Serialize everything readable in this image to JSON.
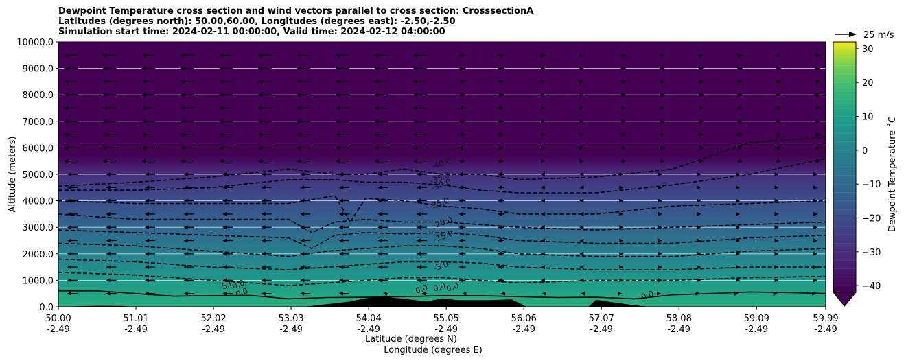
{
  "chart_data": {
    "type": "heatmap",
    "title_lines": [
      "Dewpoint Temperature cross section and wind vectors parallel to cross section: CrosssectionA",
      "Latitudes (degrees north): 50.00,60.00, Longitudes (degrees east): -2.50,-2.50",
      "Simulation start time: 2024-02-11 00:00:00, Valid time: 2024-02-12 04:00:00"
    ],
    "ylabel": "Altitude (meters)",
    "xlabel": "Latitude (degrees N)",
    "xlabel2": "Longitude (degrees E)",
    "ylim": [
      0,
      10000
    ],
    "xlim": [
      50.0,
      59.99
    ],
    "y_ticks": [
      "0.0",
      "1000.0",
      "2000.0",
      "3000.0",
      "4000.0",
      "5000.0",
      "6000.0",
      "7000.0",
      "8000.0",
      "9000.0",
      "10000.0"
    ],
    "x_ticks": [
      {
        "lat": "50.00",
        "lon": "-2.49"
      },
      {
        "lat": "51.01",
        "lon": "-2.49"
      },
      {
        "lat": "52.02",
        "lon": "-2.49"
      },
      {
        "lat": "53.03",
        "lon": "-2.49"
      },
      {
        "lat": "54.04",
        "lon": "-2.49"
      },
      {
        "lat": "55.05",
        "lon": "-2.49"
      },
      {
        "lat": "56.06",
        "lon": "-2.49"
      },
      {
        "lat": "57.07",
        "lon": "-2.49"
      },
      {
        "lat": "58.08",
        "lon": "-2.49"
      },
      {
        "lat": "59.09",
        "lon": "-2.49"
      },
      {
        "lat": "59.99",
        "lon": "-2.49"
      }
    ],
    "grid": "horizontal",
    "colorbar": {
      "label": "Dewpoint Temperature ˚C",
      "ticks": [
        "30",
        "20",
        "10",
        "0",
        "−10",
        "−20",
        "−30",
        "−40"
      ],
      "range": [
        -42,
        32
      ],
      "extend": "min",
      "colormap": "viridis"
    },
    "quiver_key": {
      "label": "25 m/s",
      "speed": 25
    },
    "contour_labels": [
      "-40.0",
      "-35.0",
      "-30.0",
      "-25.0",
      "-20.0",
      "-15.0",
      "-5.0",
      "0.0",
      "0.0",
      "-5.0",
      "0.0",
      "0.0",
      "0.0",
      "0.0"
    ],
    "contours": [
      {
        "level": 0,
        "style": "solid",
        "points": [
          [
            50.0,
            600
          ],
          [
            50.5,
            600
          ],
          [
            51.0,
            500
          ],
          [
            51.5,
            400
          ],
          [
            52.0,
            420
          ],
          [
            52.5,
            430
          ],
          [
            53.0,
            300
          ],
          [
            53.5,
            350
          ],
          [
            54.0,
            360
          ],
          [
            54.5,
            380
          ],
          [
            55.0,
            420
          ],
          [
            55.5,
            420
          ],
          [
            56.0,
            380
          ],
          [
            56.5,
            350
          ],
          [
            57.0,
            360
          ],
          [
            57.5,
            300
          ],
          [
            58.0,
            450
          ],
          [
            58.5,
            500
          ],
          [
            59.0,
            560
          ],
          [
            59.5,
            540
          ],
          [
            59.99,
            500
          ]
        ]
      },
      {
        "level": -5,
        "style": "dashed",
        "points": [
          [
            50.0,
            1300
          ],
          [
            51.0,
            1200
          ],
          [
            52.0,
            1000
          ],
          [
            53.0,
            800
          ],
          [
            53.5,
            900
          ],
          [
            54.0,
            1000
          ],
          [
            54.5,
            1100
          ],
          [
            55.0,
            1100
          ],
          [
            55.5,
            1000
          ],
          [
            56.0,
            900
          ],
          [
            56.5,
            950
          ],
          [
            57.0,
            1000
          ],
          [
            58.0,
            1000
          ],
          [
            59.0,
            1100
          ],
          [
            59.99,
            1150
          ]
        ]
      },
      {
        "level": -10,
        "style": "dashed",
        "points": [
          [
            50.0,
            1800
          ],
          [
            51.0,
            1700
          ],
          [
            52.0,
            1500
          ],
          [
            53.0,
            1400
          ],
          [
            53.5,
            1500
          ],
          [
            54.0,
            1600
          ],
          [
            54.5,
            1700
          ],
          [
            55.0,
            1700
          ],
          [
            55.5,
            1650
          ],
          [
            56.0,
            1500
          ],
          [
            57.0,
            1400
          ],
          [
            58.0,
            1400
          ],
          [
            59.0,
            1500
          ],
          [
            59.99,
            1500
          ]
        ]
      },
      {
        "level": -15,
        "style": "dashed",
        "points": [
          [
            50.0,
            2400
          ],
          [
            51.0,
            2300
          ],
          [
            52.0,
            2100
          ],
          [
            53.0,
            1900
          ],
          [
            53.5,
            2100
          ],
          [
            54.0,
            2200
          ],
          [
            54.5,
            2300
          ],
          [
            55.0,
            2300
          ],
          [
            55.5,
            2200
          ],
          [
            56.0,
            2000
          ],
          [
            57.0,
            1900
          ],
          [
            58.0,
            1900
          ],
          [
            59.0,
            2100
          ],
          [
            59.99,
            2200
          ]
        ]
      },
      {
        "level": -20,
        "style": "dashed",
        "points": [
          [
            50.0,
            2900
          ],
          [
            51.0,
            2800
          ],
          [
            52.0,
            2700
          ],
          [
            53.0,
            2600
          ],
          [
            53.3,
            2200
          ],
          [
            53.6,
            2700
          ],
          [
            54.0,
            2800
          ],
          [
            54.5,
            2750
          ],
          [
            55.0,
            2800
          ],
          [
            55.5,
            2700
          ],
          [
            56.0,
            2500
          ],
          [
            57.0,
            2400
          ],
          [
            58.0,
            2400
          ],
          [
            59.0,
            2600
          ],
          [
            59.99,
            2700
          ]
        ]
      },
      {
        "level": -25,
        "style": "dashed",
        "points": [
          [
            50.0,
            3500
          ],
          [
            51.0,
            3300
          ],
          [
            52.0,
            3300
          ],
          [
            53.0,
            3300
          ],
          [
            53.3,
            2800
          ],
          [
            53.6,
            3200
          ],
          [
            54.0,
            3300
          ],
          [
            54.5,
            3200
          ],
          [
            55.0,
            3200
          ],
          [
            55.5,
            3100
          ],
          [
            56.0,
            3000
          ],
          [
            57.0,
            2900
          ],
          [
            58.0,
            3000
          ],
          [
            59.0,
            3100
          ],
          [
            59.99,
            3200
          ]
        ]
      },
      {
        "level": -30,
        "style": "dashed",
        "points": [
          [
            50.0,
            4000
          ],
          [
            51.0,
            3900
          ],
          [
            52.0,
            3900
          ],
          [
            53.0,
            3900
          ],
          [
            53.6,
            4200
          ],
          [
            53.8,
            3200
          ],
          [
            54.0,
            4100
          ],
          [
            54.5,
            4000
          ],
          [
            55.0,
            3800
          ],
          [
            55.5,
            3700
          ],
          [
            56.0,
            3500
          ],
          [
            57.0,
            3500
          ],
          [
            58.0,
            3800
          ],
          [
            59.0,
            3900
          ],
          [
            59.99,
            4000
          ]
        ]
      },
      {
        "level": -35,
        "style": "dashed",
        "points": [
          [
            50.0,
            4400
          ],
          [
            51.0,
            4400
          ],
          [
            52.0,
            4500
          ],
          [
            53.0,
            4800
          ],
          [
            53.6,
            4800
          ],
          [
            54.0,
            4700
          ],
          [
            54.5,
            4700
          ],
          [
            55.0,
            4600
          ],
          [
            55.5,
            4400
          ],
          [
            56.0,
            4300
          ],
          [
            57.0,
            4300
          ],
          [
            58.0,
            4600
          ],
          [
            59.0,
            5000
          ],
          [
            59.5,
            5300
          ],
          [
            59.99,
            5600
          ]
        ]
      },
      {
        "level": -40,
        "style": "dashed",
        "points": [
          [
            50.0,
            4550
          ],
          [
            51.0,
            4700
          ],
          [
            52.0,
            4900
          ],
          [
            53.0,
            5200
          ],
          [
            53.6,
            5000
          ],
          [
            54.0,
            5000
          ],
          [
            54.5,
            5200
          ],
          [
            55.0,
            5000
          ],
          [
            55.5,
            5000
          ],
          [
            56.0,
            4800
          ],
          [
            57.0,
            4900
          ],
          [
            58.0,
            5200
          ],
          [
            58.5,
            5700
          ],
          [
            59.0,
            6200
          ],
          [
            59.5,
            6300
          ],
          [
            59.99,
            6400
          ]
        ]
      }
    ],
    "terrain_m": [
      [
        50.0,
        0
      ],
      [
        50.5,
        40
      ],
      [
        50.8,
        30
      ],
      [
        51.0,
        0
      ],
      [
        52.5,
        0
      ],
      [
        53.2,
        0
      ],
      [
        53.8,
        200
      ],
      [
        54.0,
        320
      ],
      [
        54.2,
        380
      ],
      [
        54.5,
        300
      ],
      [
        54.8,
        200
      ],
      [
        55.0,
        320
      ],
      [
        55.2,
        250
      ],
      [
        55.6,
        250
      ],
      [
        55.9,
        280
      ],
      [
        56.1,
        0
      ],
      [
        56.9,
        0
      ],
      [
        57.0,
        260
      ],
      [
        57.2,
        180
      ],
      [
        57.5,
        60
      ],
      [
        57.7,
        0
      ],
      [
        59.99,
        0
      ]
    ],
    "wind_rows_m": [
      9500,
      9000,
      8500,
      8000,
      7500,
      7000,
      6500,
      6000,
      5500,
      5000,
      4500,
      4000,
      3500,
      3000,
      2500,
      2000,
      1500,
      1000,
      500
    ],
    "wind_note_ms": "westward winds ~12-20 m/s south of 55N aloft, weak eastward winds north of 57N"
  }
}
